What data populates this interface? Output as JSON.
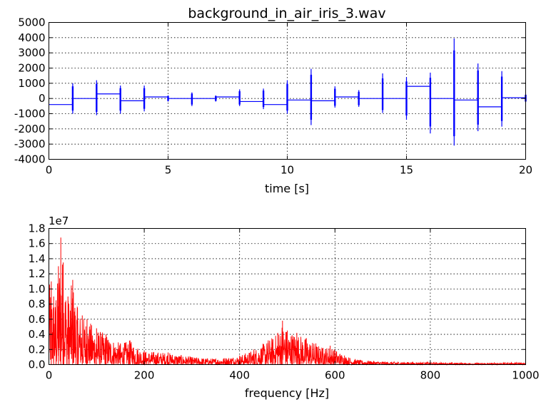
{
  "figure": {
    "background": "#ffffff"
  },
  "chart_data": [
    {
      "type": "line",
      "title": "background_in_air_iris_3.wav",
      "xlabel": "time [s]",
      "ylabel": "",
      "xlim": [
        0,
        20
      ],
      "ylim": [
        -4000,
        5000
      ],
      "xticks": [
        0,
        5,
        10,
        15,
        20
      ],
      "yticks": [
        -4000,
        -3000,
        -2000,
        -1000,
        0,
        1000,
        2000,
        3000,
        4000,
        5000
      ],
      "grid": true,
      "color": "#0000ff",
      "description_note": "",
      "segments": [
        {
          "start": 0,
          "end": 1,
          "level": -400
        },
        {
          "start": 1,
          "end": 2,
          "level": 0
        },
        {
          "start": 2,
          "end": 3,
          "level": 300
        },
        {
          "start": 3,
          "end": 4,
          "level": -150
        },
        {
          "start": 4,
          "end": 5,
          "level": 100
        },
        {
          "start": 5,
          "end": 6,
          "level": 0
        },
        {
          "start": 6,
          "end": 7,
          "level": 0
        },
        {
          "start": 7,
          "end": 8,
          "level": 100
        },
        {
          "start": 8,
          "end": 9,
          "level": -200
        },
        {
          "start": 9,
          "end": 10,
          "level": -400
        },
        {
          "start": 10,
          "end": 11,
          "level": -100
        },
        {
          "start": 11,
          "end": 12,
          "level": -150
        },
        {
          "start": 12,
          "end": 13,
          "level": 100
        },
        {
          "start": 13,
          "end": 14,
          "level": 0
        },
        {
          "start": 14,
          "end": 15,
          "level": 0
        },
        {
          "start": 15,
          "end": 16,
          "level": 800
        },
        {
          "start": 16,
          "end": 17,
          "level": 0
        },
        {
          "start": 17,
          "end": 18,
          "level": -100
        },
        {
          "start": 18,
          "end": 19,
          "level": -550
        },
        {
          "start": 19,
          "end": 20,
          "level": 50
        }
      ],
      "spikes": [
        {
          "t": 1.0,
          "min": -1000,
          "max": 1000
        },
        {
          "t": 2.0,
          "min": -1100,
          "max": 1200
        },
        {
          "t": 3.0,
          "min": -1000,
          "max": 850
        },
        {
          "t": 4.0,
          "min": -850,
          "max": 850
        },
        {
          "t": 5.0,
          "min": -200,
          "max": 200
        },
        {
          "t": 6.0,
          "min": -500,
          "max": 400
        },
        {
          "t": 7.0,
          "min": -200,
          "max": 200
        },
        {
          "t": 8.0,
          "min": -500,
          "max": 600
        },
        {
          "t": 9.0,
          "min": -700,
          "max": 650
        },
        {
          "t": 10.0,
          "min": -1000,
          "max": 1200
        },
        {
          "t": 11.0,
          "min": -1750,
          "max": 1950
        },
        {
          "t": 12.0,
          "min": -600,
          "max": 800
        },
        {
          "t": 13.0,
          "min": -550,
          "max": 550
        },
        {
          "t": 14.0,
          "min": -950,
          "max": 1650
        },
        {
          "t": 15.0,
          "min": -1400,
          "max": 1400
        },
        {
          "t": 16.0,
          "min": -2300,
          "max": 1700
        },
        {
          "t": 17.0,
          "min": -3100,
          "max": 3950
        },
        {
          "t": 18.0,
          "min": -2150,
          "max": 2300
        },
        {
          "t": 19.0,
          "min": -1850,
          "max": 1800
        },
        {
          "t": 20.0,
          "min": -250,
          "max": 300
        }
      ]
    },
    {
      "type": "line",
      "title": "",
      "xlabel": "frequency [Hz]",
      "ylabel": "",
      "offset_label": "1e7",
      "xlim": [
        0,
        1000
      ],
      "ylim": [
        0,
        1.8
      ],
      "xticks": [
        0,
        200,
        400,
        600,
        800,
        1000
      ],
      "yticks": [
        0.0,
        0.2,
        0.4,
        0.6,
        0.8,
        1.0,
        1.2,
        1.4,
        1.6,
        1.8
      ],
      "ytick_labels": [
        "0.0",
        "0.2",
        "0.4",
        "0.6",
        "0.8",
        "1.0",
        "1.2",
        "1.4",
        "1.6",
        "1.8"
      ],
      "grid": true,
      "color": "#ff0000",
      "envelope": {
        "x": [
          0,
          5,
          10,
          15,
          20,
          25,
          30,
          40,
          50,
          60,
          70,
          80,
          100,
          120,
          150,
          170,
          200,
          250,
          300,
          350,
          400,
          430,
          460,
          480,
          490,
          500,
          520,
          540,
          560,
          575,
          590,
          620,
          650,
          700,
          800,
          900,
          1000
        ],
        "y": [
          1.05,
          1.1,
          0.9,
          0.85,
          1.3,
          1.68,
          1.35,
          0.9,
          1.12,
          0.75,
          0.65,
          0.6,
          0.48,
          0.4,
          0.28,
          0.32,
          0.18,
          0.16,
          0.1,
          0.08,
          0.12,
          0.2,
          0.32,
          0.42,
          0.58,
          0.45,
          0.42,
          0.35,
          0.28,
          0.22,
          0.25,
          0.12,
          0.06,
          0.04,
          0.03,
          0.02,
          0.03
        ]
      }
    }
  ]
}
